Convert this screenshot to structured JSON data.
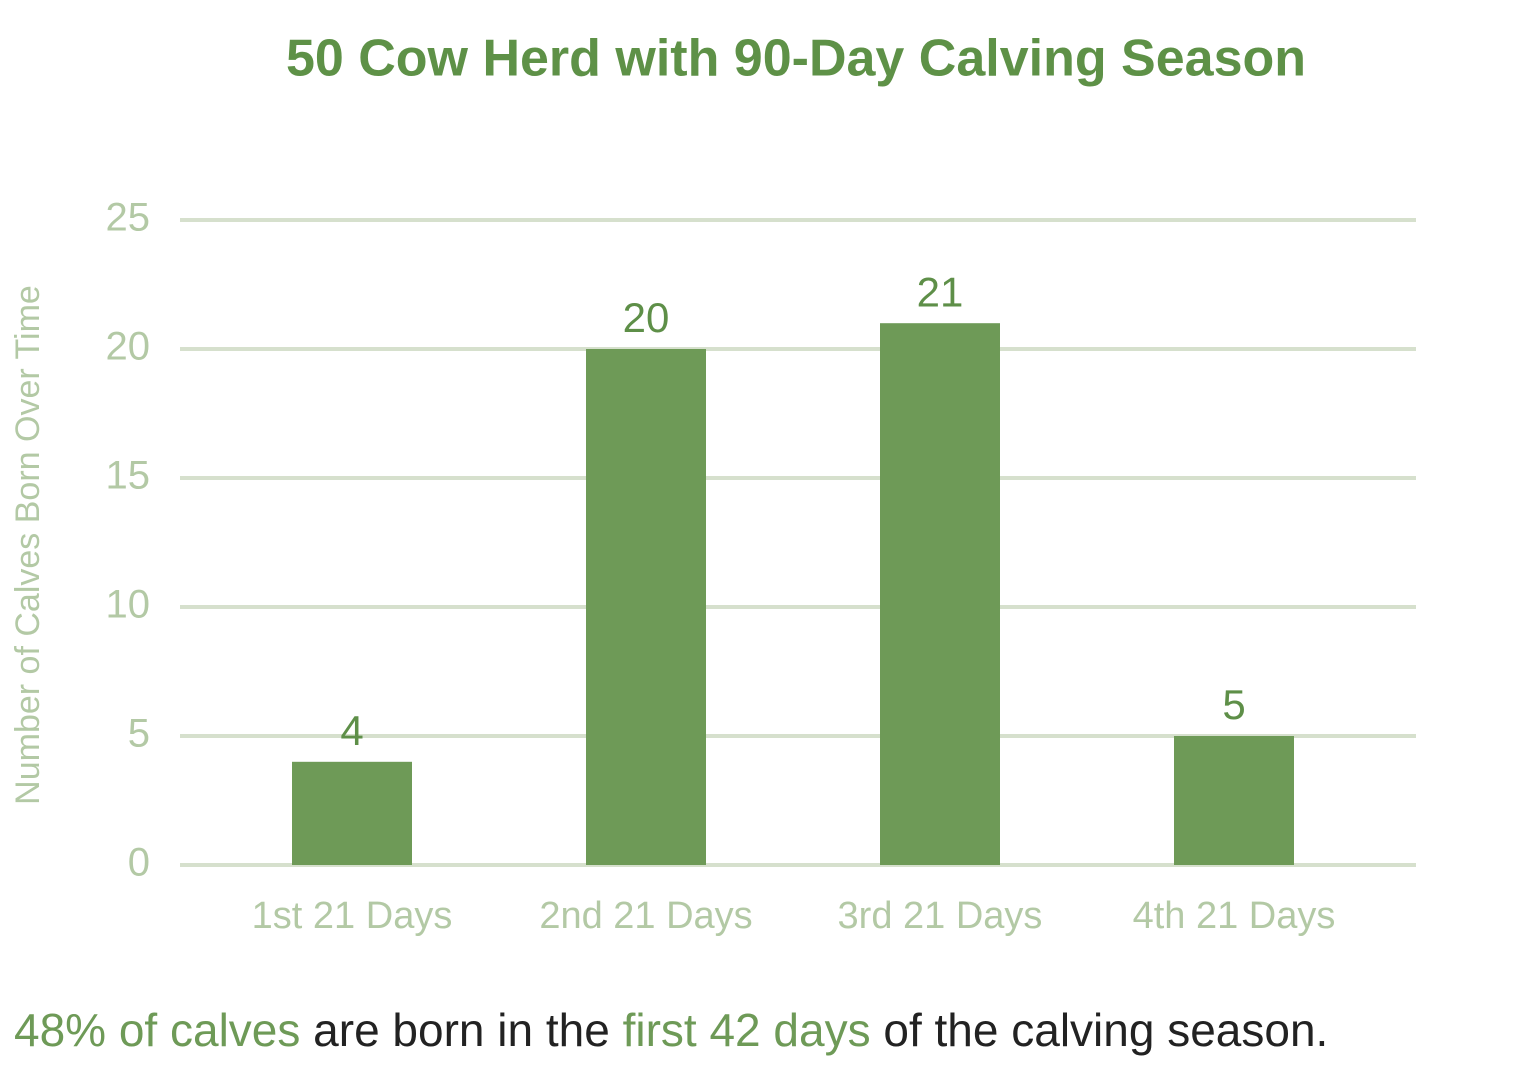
{
  "chart_data": {
    "type": "bar",
    "title": "50 Cow Herd with 90-Day Calving Season",
    "y_label": "Number of Calves Born Over Time",
    "categories": [
      "1st 21 Days",
      "2nd 21 Days",
      "3rd 21 Days",
      "4th 21 Days"
    ],
    "values": [
      4,
      20,
      21,
      5
    ],
    "color": "#6e9a57",
    "ylim": [
      0,
      25
    ],
    "yticks": [
      0,
      5,
      10,
      15,
      20,
      25
    ],
    "grid": true,
    "annotation": [
      {
        "text": "48% of calves",
        "color": "#6e9a57"
      },
      {
        "text": " are born in the ",
        "color": "#222222"
      },
      {
        "text": "first 42 days",
        "color": "#6e9a57"
      },
      {
        "text": " of the calving season.",
        "color": "#222222"
      }
    ]
  }
}
